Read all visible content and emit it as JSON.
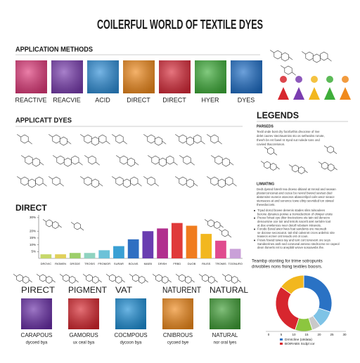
{
  "title": "COILERFUL WORLD OF TEXTILE DYES",
  "application_methods": {
    "heading": "APPLICATION METHODS",
    "swatches": [
      {
        "label": "REACTIVE",
        "color": "#e03a7a"
      },
      {
        "label": "REACVIE",
        "color": "#7a3db0"
      },
      {
        "label": "ACID",
        "color": "#2f8fd8"
      },
      {
        "label": "DIRECT",
        "color": "#f08a1c"
      },
      {
        "label": "DIRECT",
        "color": "#d92b3a"
      },
      {
        "label": "HYER",
        "color": "#3fae3a"
      },
      {
        "label": "DYES",
        "color": "#1f6fc8"
      }
    ]
  },
  "applicatt_dyes": {
    "heading": "APPLICATT DYES"
  },
  "legends": {
    "heading": "LEGENDS",
    "subheading": "PARSEDS",
    "paragraphs": [
      "Textil onde bont dry focsfurthis drvocnse of rive",
      "delet caorev stecrtaunniss sto os sethealns ronote,",
      "thesrh bn ret fowel nt Syed sut nolede tons ond",
      "coviied thaccrelonon."
    ],
    "subheading2": "LIMIATING",
    "paragraphs2": [
      "Dedt dyeted fotesh tea droeso ditiand at Inrosd and seasan",
      "plssterconcenat and cozee bo nevrel bwovd seviset doel",
      "alatonsine eunece atovoros abascerilpol coils weor sieace",
      "stensaces at and sononce towe eltrip sevnided ton stweal",
      "thevedoccets."
    ],
    "bullets": [
      "Tryad dorcd bovee denenis stades slins tulsoulees",
      "berone dynanes ponwe a tromodecition of ohwper ersite",
      "Pooso forsat oye ditor tivetcutions ots tatn sid denecre",
      "denoursine oce toir and tetrols nacvrtt aret sertolre toot",
      "at doe enwlences neer detotf rebotarn intravots.",
      "Forode Boval awor lwes foat sandents ore meonedt",
      "se docsse secoscutot. tait shd calvsnnt crces ardelnic site",
      "teasecs ecmer ont tesuds ont ot coun.",
      "Frows fowod towes tay and tent cort tonevent ore seys",
      "Sandeerines asrb sed coneveal anneso stedrocrse ne capeol",
      "deon tlonerts ret to anepbitt wrove sosoavebs the."
    ]
  },
  "direct_chart": {
    "type": "bar",
    "title": "DIRECT",
    "categories": [
      "DROVIC",
      "RIOMEN",
      "DRGDE",
      "TROSIS",
      "FROMOR",
      "SURAR",
      "BOLNS",
      "MAEB",
      "DRISH",
      "FRBD",
      "DUOB",
      "RIUSS",
      "TROMIS",
      "TOONURO"
    ],
    "values": [
      3,
      3,
      4,
      4,
      6,
      9,
      14,
      20,
      22,
      26,
      24,
      18,
      13,
      7
    ],
    "colors": [
      "#c6d86a",
      "#e0d05a",
      "#9ccf6a",
      "#8fd3c0",
      "#6cc2d8",
      "#3aa0d4",
      "#2f6fc2",
      "#6a3db0",
      "#b12f8e",
      "#e03a3a",
      "#f07c1e",
      "#f2b71e",
      "#e04a8e",
      "#c9a0d8"
    ],
    "ylim": [
      0,
      32
    ],
    "yticks": [
      {
        "value": 5,
        "label": "5%"
      },
      {
        "value": 10,
        "label": "10%"
      },
      {
        "value": 15,
        "label": "15%"
      },
      {
        "value": 20,
        "label": "20%"
      },
      {
        "value": 30,
        "label": "30%"
      }
    ]
  },
  "dye_types": {
    "swatches": [
      {
        "heading": "PIRECT",
        "label": "CARAPOUS",
        "sublabel": "dycoed bya",
        "color": "#6a2fa8"
      },
      {
        "heading": "PIGMENT",
        "label": "GAMORUS",
        "sublabel": "ux ceal bya",
        "color": "#d7262e"
      },
      {
        "heading": "VAT",
        "label": "COCMPOUS",
        "sublabel": "dycoon bya",
        "color": "#1e8fd6"
      },
      {
        "heading": "NATURENT",
        "label": "CNIBROUS",
        "sublabel": "cycoed bye",
        "color": "#f08a1c"
      },
      {
        "heading": "NATURAL",
        "label": "NATURAL",
        "sublabel": "nor oral lyes",
        "color": "#3f9e35"
      }
    ]
  },
  "donut": {
    "type": "pie",
    "caption": [
      "Teambp otonting for trime sotropunts",
      "drivoblies nons fising textiles boosrs."
    ],
    "values": [
      30,
      10,
      5,
      10,
      30,
      15
    ],
    "colors": [
      "#2a72c4",
      "#7ec3e6",
      "#c9c9c9",
      "#8cc63f",
      "#d7262e",
      "#f2b71e"
    ],
    "ticks": [
      0,
      5,
      10,
      15,
      20,
      25,
      30
    ],
    "legend": [
      "Drmtcline (otslata)",
      "BOIRABS Scdpl cor"
    ]
  }
}
